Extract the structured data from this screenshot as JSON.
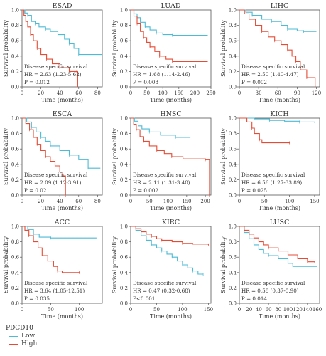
{
  "figure": {
    "y_axis_label": "Survival probability",
    "x_axis_label": "Time (months)",
    "annotation_label": "Disease specific survival"
  },
  "legend": {
    "title": "PDCD10",
    "items": [
      {
        "label": "Low",
        "color": "#4dbbd5"
      },
      {
        "label": "High",
        "color": "#e64b35"
      }
    ]
  },
  "chart_data": [
    {
      "type": "line",
      "title": "ESAD",
      "xlim": [
        0,
        85
      ],
      "ylim": [
        0,
        1
      ],
      "x_ticks": [
        0,
        20,
        40,
        60,
        80
      ],
      "y_ticks": [
        "0.0",
        "0.2",
        "0.4",
        "0.6",
        "0.8",
        "1.0"
      ],
      "hr": "HR = 2.63 (1.23-5.62)",
      "p": "P = 0.012",
      "series": [
        {
          "name": "Low",
          "color": "#4dbbd5",
          "points": [
            [
              0,
              1
            ],
            [
              3,
              0.96
            ],
            [
              6,
              0.93
            ],
            [
              10,
              0.85
            ],
            [
              14,
              0.82
            ],
            [
              18,
              0.78
            ],
            [
              25,
              0.75
            ],
            [
              30,
              0.72
            ],
            [
              38,
              0.68
            ],
            [
              45,
              0.62
            ],
            [
              50,
              0.56
            ],
            [
              55,
              0.5
            ],
            [
              60,
              0.42
            ],
            [
              85,
              0.42
            ]
          ]
        },
        {
          "name": "High",
          "color": "#e64b35",
          "points": [
            [
              0,
              1
            ],
            [
              2,
              0.93
            ],
            [
              4,
              0.85
            ],
            [
              6,
              0.78
            ],
            [
              9,
              0.68
            ],
            [
              12,
              0.6
            ],
            [
              16,
              0.5
            ],
            [
              20,
              0.42
            ],
            [
              26,
              0.36
            ],
            [
              32,
              0.3
            ],
            [
              40,
              0.25
            ],
            [
              50,
              0.2
            ],
            [
              58,
              0.2
            ],
            [
              59,
              0
            ]
          ]
        }
      ]
    },
    {
      "type": "line",
      "title": "LUAD",
      "xlim": [
        0,
        250
      ],
      "ylim": [
        0,
        1
      ],
      "x_ticks": [
        0,
        50,
        100,
        150,
        200,
        250
      ],
      "y_ticks": [
        "0.0",
        "0.2",
        "0.4",
        "0.6",
        "0.8",
        "1.0"
      ],
      "hr": "HR = 1.68 (1.14-2.46)",
      "p": "P = 0.008",
      "series": [
        {
          "name": "Low",
          "color": "#4dbbd5",
          "points": [
            [
              0,
              1
            ],
            [
              10,
              0.95
            ],
            [
              20,
              0.9
            ],
            [
              30,
              0.84
            ],
            [
              45,
              0.78
            ],
            [
              60,
              0.74
            ],
            [
              80,
              0.7
            ],
            [
              100,
              0.68
            ],
            [
              130,
              0.67
            ],
            [
              240,
              0.67
            ]
          ]
        },
        {
          "name": "High",
          "color": "#e64b35",
          "points": [
            [
              0,
              1
            ],
            [
              10,
              0.92
            ],
            [
              20,
              0.82
            ],
            [
              30,
              0.72
            ],
            [
              40,
              0.64
            ],
            [
              50,
              0.58
            ],
            [
              60,
              0.52
            ],
            [
              75,
              0.46
            ],
            [
              90,
              0.4
            ],
            [
              110,
              0.36
            ],
            [
              130,
              0.33
            ],
            [
              240,
              0.33
            ]
          ]
        }
      ]
    },
    {
      "type": "line",
      "title": "LIHC",
      "xlim": [
        0,
        125
      ],
      "ylim": [
        0,
        1
      ],
      "x_ticks": [
        0,
        30,
        60,
        90,
        120
      ],
      "y_ticks": [
        "0.0",
        "0.2",
        "0.4",
        "0.6",
        "0.8",
        "1.0"
      ],
      "hr": "HR = 2.50 (1.40-4.47)",
      "p": "P = 0.002",
      "series": [
        {
          "name": "Low",
          "color": "#4dbbd5",
          "points": [
            [
              0,
              1
            ],
            [
              10,
              0.97
            ],
            [
              20,
              0.93
            ],
            [
              35,
              0.88
            ],
            [
              50,
              0.85
            ],
            [
              65,
              0.8
            ],
            [
              75,
              0.75
            ],
            [
              90,
              0.73
            ],
            [
              100,
              0.72
            ],
            [
              120,
              0.72
            ]
          ]
        },
        {
          "name": "High",
          "color": "#e64b35",
          "points": [
            [
              0,
              1
            ],
            [
              8,
              0.95
            ],
            [
              15,
              0.88
            ],
            [
              25,
              0.8
            ],
            [
              35,
              0.72
            ],
            [
              45,
              0.65
            ],
            [
              55,
              0.6
            ],
            [
              65,
              0.55
            ],
            [
              75,
              0.48
            ],
            [
              82,
              0.4
            ],
            [
              88,
              0.33
            ],
            [
              95,
              0.22
            ],
            [
              105,
              0.12
            ],
            [
              115,
              0.12
            ],
            [
              118,
              0
            ]
          ]
        }
      ]
    },
    {
      "type": "line",
      "title": "ESCA",
      "xlim": [
        0,
        85
      ],
      "ylim": [
        0,
        1
      ],
      "x_ticks": [
        0,
        20,
        40,
        60,
        80
      ],
      "y_ticks": [
        "0.0",
        "0.2",
        "0.4",
        "0.6",
        "0.8",
        "1.0"
      ],
      "hr": "HR = 2.09 (1.12-3.91)",
      "p": "P = 0.021",
      "series": [
        {
          "name": "Low",
          "color": "#4dbbd5",
          "points": [
            [
              0,
              1
            ],
            [
              5,
              0.95
            ],
            [
              10,
              0.88
            ],
            [
              15,
              0.82
            ],
            [
              20,
              0.75
            ],
            [
              25,
              0.7
            ],
            [
              30,
              0.64
            ],
            [
              40,
              0.58
            ],
            [
              50,
              0.52
            ],
            [
              60,
              0.46
            ],
            [
              70,
              0.35
            ],
            [
              83,
              0.35
            ]
          ]
        },
        {
          "name": "High",
          "color": "#e64b35",
          "points": [
            [
              0,
              1
            ],
            [
              4,
              0.93
            ],
            [
              8,
              0.85
            ],
            [
              12,
              0.75
            ],
            [
              16,
              0.66
            ],
            [
              20,
              0.58
            ],
            [
              25,
              0.5
            ],
            [
              30,
              0.44
            ],
            [
              35,
              0.38
            ],
            [
              40,
              0.3
            ],
            [
              43,
              0.25
            ],
            [
              45,
              0.25
            ],
            [
              46,
              0
            ]
          ]
        }
      ]
    },
    {
      "type": "line",
      "title": "HNSC",
      "xlim": [
        0,
        215
      ],
      "ylim": [
        0,
        1
      ],
      "x_ticks": [
        0,
        50,
        100,
        150,
        200
      ],
      "y_ticks": [
        "0.0",
        "0.2",
        "0.4",
        "0.6",
        "0.8",
        "1.0"
      ],
      "hr": "HR = 2.11 (1.31-3.40)",
      "p": "P = 0.002",
      "series": [
        {
          "name": "Low",
          "color": "#4dbbd5",
          "points": [
            [
              0,
              1
            ],
            [
              10,
              0.96
            ],
            [
              20,
              0.9
            ],
            [
              30,
              0.86
            ],
            [
              50,
              0.82
            ],
            [
              80,
              0.78
            ],
            [
              120,
              0.75
            ],
            [
              160,
              0.75
            ]
          ]
        },
        {
          "name": "High",
          "color": "#e64b35",
          "points": [
            [
              0,
              1
            ],
            [
              8,
              0.92
            ],
            [
              15,
              0.85
            ],
            [
              25,
              0.76
            ],
            [
              35,
              0.7
            ],
            [
              50,
              0.64
            ],
            [
              70,
              0.58
            ],
            [
              90,
              0.54
            ],
            [
              110,
              0.5
            ],
            [
              140,
              0.47
            ],
            [
              200,
              0.46
            ],
            [
              210,
              0.46
            ],
            [
              211,
              0
            ]
          ]
        }
      ]
    },
    {
      "type": "line",
      "title": "KICH",
      "xlim": [
        0,
        160
      ],
      "ylim": [
        0,
        1
      ],
      "x_ticks": [
        0,
        50,
        100,
        150
      ],
      "y_ticks": [
        "0.0",
        "0.2",
        "0.4",
        "0.6",
        "0.8",
        "1.0"
      ],
      "hr": "HR = 6.56 (1.27-33.89)",
      "p": "P = 0.025",
      "series": [
        {
          "name": "Low",
          "color": "#4dbbd5",
          "points": [
            [
              0,
              1
            ],
            [
              30,
              0.99
            ],
            [
              60,
              0.97
            ],
            [
              90,
              0.96
            ],
            [
              120,
              0.95
            ],
            [
              150,
              0.94
            ]
          ]
        },
        {
          "name": "High",
          "color": "#e64b35",
          "points": [
            [
              0,
              1
            ],
            [
              15,
              0.95
            ],
            [
              25,
              0.87
            ],
            [
              30,
              0.8
            ],
            [
              40,
              0.72
            ],
            [
              45,
              0.68
            ],
            [
              100,
              0.68
            ]
          ]
        }
      ]
    },
    {
      "type": "line",
      "title": "ACC",
      "xlim": [
        0,
        140
      ],
      "ylim": [
        0,
        1
      ],
      "x_ticks": [
        0,
        50,
        100
      ],
      "y_ticks": [
        "0.0",
        "0.2",
        "0.4",
        "0.6",
        "0.8",
        "1.0"
      ],
      "hr": "HR = 3.64 (1.05-12.51)",
      "p": "P = 0.035",
      "series": [
        {
          "name": "Low",
          "color": "#4dbbd5",
          "points": [
            [
              0,
              1
            ],
            [
              10,
              0.96
            ],
            [
              20,
              0.9
            ],
            [
              30,
              0.86
            ],
            [
              50,
              0.85
            ],
            [
              130,
              0.85
            ]
          ]
        },
        {
          "name": "High",
          "color": "#e64b35",
          "points": [
            [
              0,
              1
            ],
            [
              5,
              0.95
            ],
            [
              12,
              0.88
            ],
            [
              20,
              0.8
            ],
            [
              28,
              0.72
            ],
            [
              35,
              0.62
            ],
            [
              45,
              0.55
            ],
            [
              55,
              0.48
            ],
            [
              62,
              0.42
            ],
            [
              70,
              0.4
            ],
            [
              100,
              0.4
            ]
          ]
        }
      ]
    },
    {
      "type": "line",
      "title": "KIRC",
      "xlim": [
        0,
        155
      ],
      "ylim": [
        0,
        1
      ],
      "x_ticks": [
        0,
        50,
        100,
        150
      ],
      "y_ticks": [
        "0.0",
        "0.2",
        "0.4",
        "0.6",
        "0.8",
        "1.0"
      ],
      "hr": "HR = 0.47 (0.32-0.68)",
      "p": "P<0.001",
      "series": [
        {
          "name": "Low",
          "color": "#4dbbd5",
          "points": [
            [
              0,
              1
            ],
            [
              10,
              0.95
            ],
            [
              20,
              0.88
            ],
            [
              30,
              0.82
            ],
            [
              40,
              0.76
            ],
            [
              50,
              0.72
            ],
            [
              60,
              0.68
            ],
            [
              70,
              0.64
            ],
            [
              80,
              0.6
            ],
            [
              90,
              0.55
            ],
            [
              100,
              0.5
            ],
            [
              110,
              0.46
            ],
            [
              120,
              0.42
            ],
            [
              130,
              0.38
            ],
            [
              140,
              0.38
            ]
          ]
        },
        {
          "name": "High",
          "color": "#e64b35",
          "points": [
            [
              0,
              1
            ],
            [
              10,
              0.97
            ],
            [
              20,
              0.93
            ],
            [
              30,
              0.9
            ],
            [
              40,
              0.87
            ],
            [
              50,
              0.84
            ],
            [
              60,
              0.82
            ],
            [
              80,
              0.8
            ],
            [
              100,
              0.78
            ],
            [
              120,
              0.77
            ],
            [
              150,
              0.76
            ]
          ]
        }
      ]
    },
    {
      "type": "line",
      "title": "LUSC",
      "xlim": [
        0,
        165
      ],
      "ylim": [
        0,
        1
      ],
      "x_ticks": [
        0,
        20,
        40,
        60,
        80,
        100,
        120,
        140,
        160
      ],
      "y_ticks": [
        "0.0",
        "0.2",
        "0.4",
        "0.6",
        "0.8",
        "1.0"
      ],
      "hr": "HR = 0.58 (0.37-0.90)",
      "p": "P = 0.014",
      "series": [
        {
          "name": "Low",
          "color": "#4dbbd5",
          "points": [
            [
              0,
              1
            ],
            [
              10,
              0.92
            ],
            [
              20,
              0.84
            ],
            [
              30,
              0.76
            ],
            [
              40,
              0.7
            ],
            [
              50,
              0.65
            ],
            [
              60,
              0.62
            ],
            [
              80,
              0.58
            ],
            [
              100,
              0.52
            ],
            [
              110,
              0.48
            ],
            [
              160,
              0.48
            ]
          ]
        },
        {
          "name": "High",
          "color": "#e64b35",
          "points": [
            [
              0,
              1
            ],
            [
              10,
              0.95
            ],
            [
              20,
              0.9
            ],
            [
              30,
              0.85
            ],
            [
              40,
              0.8
            ],
            [
              50,
              0.76
            ],
            [
              60,
              0.72
            ],
            [
              80,
              0.68
            ],
            [
              100,
              0.63
            ],
            [
              120,
              0.58
            ],
            [
              140,
              0.54
            ],
            [
              155,
              0.52
            ]
          ]
        }
      ]
    }
  ]
}
